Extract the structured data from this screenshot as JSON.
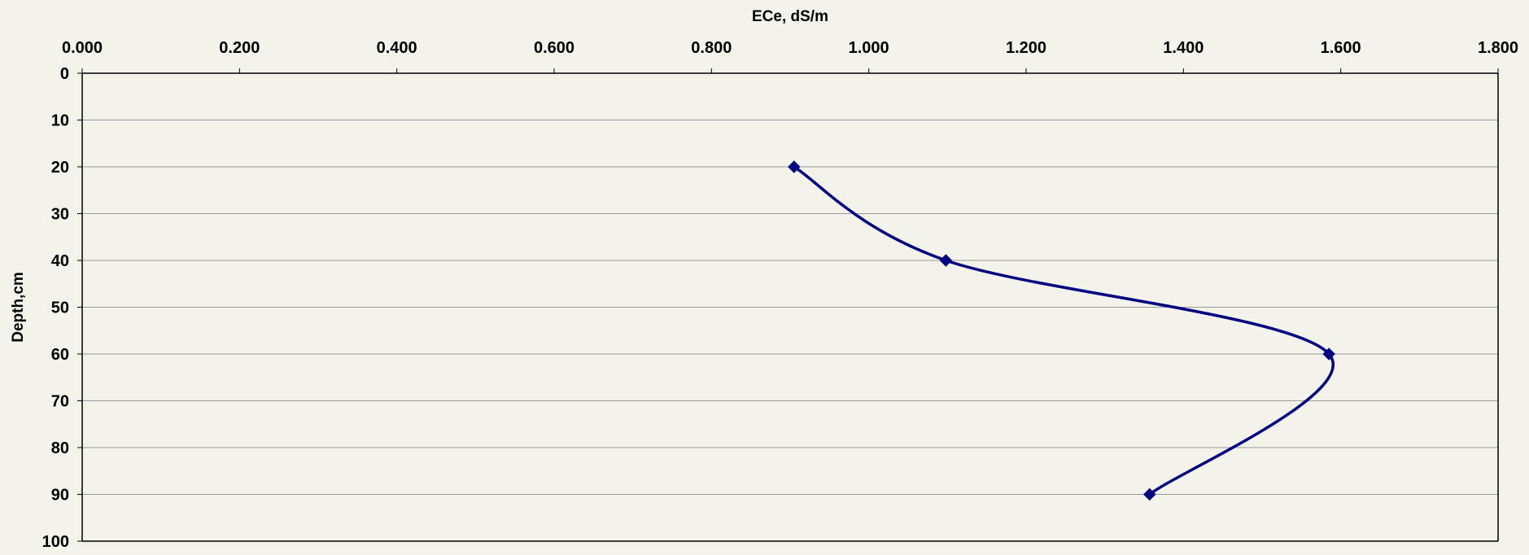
{
  "chart_data": {
    "type": "line",
    "title": "",
    "xlabel": "ECe, dS/m",
    "ylabel": "Depth,cm",
    "x_axis_position": "top",
    "y_axis_reversed": true,
    "xlim": [
      0,
      1.8
    ],
    "ylim": [
      0,
      100
    ],
    "x_ticks": [
      "0.000",
      "0.200",
      "0.400",
      "0.600",
      "0.800",
      "1.000",
      "1.200",
      "1.400",
      "1.600",
      "1.800"
    ],
    "y_ticks": [
      "0",
      "10",
      "20",
      "30",
      "40",
      "50",
      "60",
      "70",
      "80",
      "90",
      "100"
    ],
    "grid": "horizontal",
    "smoothed": true,
    "marker": "diamond",
    "series": [
      {
        "points": [
          {
            "x": 0.905,
            "y": 20
          },
          {
            "x": 1.098,
            "y": 40
          },
          {
            "x": 1.585,
            "y": 60
          },
          {
            "x": 1.357,
            "y": 90
          }
        ]
      }
    ],
    "colors": {
      "series": "#000080",
      "background": "#f3f3ec",
      "grid": "#9a9a9a",
      "axis": "#000000"
    }
  }
}
